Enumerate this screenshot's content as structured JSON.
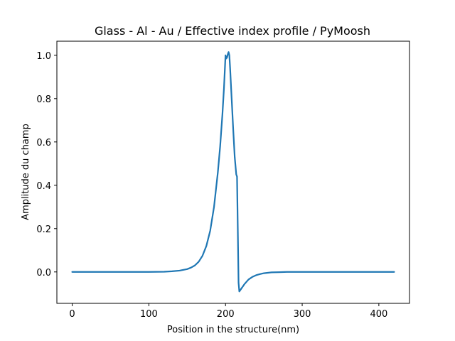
{
  "chart_data": {
    "type": "line",
    "title": "Glass - Al - Au / Effective index profile / PyMoosh",
    "xlabel": "Position in the structure(nm)",
    "ylabel": "Amplitude du champ",
    "xlim": [
      -20,
      440
    ],
    "ylim": [
      -0.145,
      1.065
    ],
    "xticks": [
      0,
      100,
      200,
      300,
      400
    ],
    "yticks": [
      0.0,
      0.2,
      0.4,
      0.6,
      0.8,
      1.0
    ],
    "xtick_labels": [
      "0",
      "100",
      "200",
      "300",
      "400"
    ],
    "ytick_labels": [
      "0.0",
      "0.2",
      "0.4",
      "0.6",
      "0.8",
      "1.0"
    ],
    "grid": false,
    "series": [
      {
        "color": "#1f77b4",
        "x": [
          0,
          50,
          100,
          120,
          130,
          140,
          150,
          155,
          160,
          165,
          170,
          175,
          180,
          185,
          190,
          193,
          196,
          198,
          200,
          201,
          202,
          203,
          204,
          205,
          206,
          208,
          210,
          212,
          214,
          215,
          216,
          217,
          218,
          219,
          220,
          222,
          225,
          230,
          235,
          240,
          245,
          250,
          260,
          270,
          280,
          300,
          350,
          420
        ],
        "y": [
          0.0,
          0.0,
          0.0,
          0.001,
          0.003,
          0.006,
          0.013,
          0.02,
          0.03,
          0.047,
          0.075,
          0.12,
          0.19,
          0.3,
          0.46,
          0.58,
          0.73,
          0.85,
          1.0,
          0.985,
          0.99,
          1.005,
          1.015,
          1.0,
          0.94,
          0.8,
          0.66,
          0.53,
          0.45,
          0.44,
          0.2,
          -0.05,
          -0.09,
          -0.085,
          -0.08,
          -0.07,
          -0.055,
          -0.035,
          -0.023,
          -0.015,
          -0.01,
          -0.006,
          -0.002,
          -0.001,
          0.0,
          0.0,
          0.0,
          0.0
        ]
      }
    ]
  }
}
